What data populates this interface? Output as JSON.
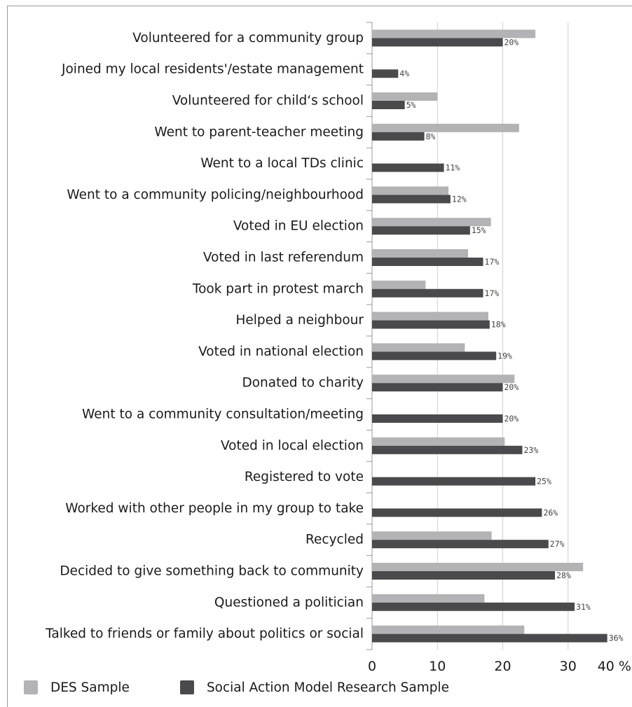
{
  "chart_data": {
    "type": "bar",
    "orientation": "horizontal",
    "categories": [
      "Volunteered for a community group",
      "Joined my local residents'/estate management",
      "Volunteered for child‘s school",
      "Went to parent-teacher meeting",
      "Went to a local TDs clinic",
      "Went to a community policing/neighbourhood",
      "Voted in EU election",
      "Voted in last referendum",
      "Took part in protest march",
      "Helped a neighbour",
      "Voted in national election",
      "Donated to charity",
      "Went to a community consultation/meeting",
      "Voted in local election",
      "Registered to vote",
      "Worked with other people in my group to take",
      "Recycled",
      "Decided to give something back to community",
      "Questioned a politician",
      "Talked to friends or family about politics or social"
    ],
    "series": [
      {
        "name": "DES Sample",
        "color": "#b3b3b5",
        "values": [
          25,
          null,
          10,
          22.5,
          null,
          11.7,
          18.2,
          14.7,
          8.2,
          17.8,
          14.2,
          21.8,
          null,
          20.3,
          null,
          null,
          18.3,
          32.3,
          17.2,
          23.3
        ]
      },
      {
        "name": "Social Action Model Research Sample",
        "color": "#4a4a4c",
        "values": [
          20,
          4,
          5,
          8,
          11,
          12,
          15,
          17,
          17,
          18,
          19,
          20,
          20,
          23,
          25,
          26,
          27,
          28,
          31,
          36
        ],
        "data_labels": [
          "20%",
          "4%",
          "5%",
          "8%",
          "11%",
          "12%",
          "15%",
          "17%",
          "17%",
          "18%",
          "19%",
          "20%",
          "20%",
          "23%",
          "25%",
          "26%",
          "27%",
          "28%",
          "31%",
          "36%"
        ]
      }
    ],
    "xlim": [
      0,
      40
    ],
    "xticks": [
      "0",
      "10",
      "20",
      "30",
      "40 %"
    ],
    "grid": "vertical",
    "legend": "bottom-left"
  }
}
